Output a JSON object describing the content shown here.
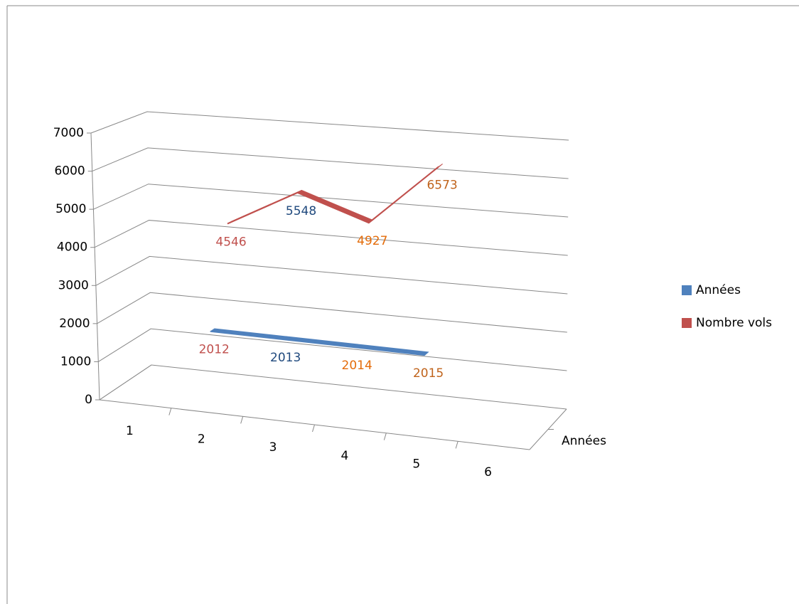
{
  "chart_data": {
    "type": "line3d",
    "categories": [
      "1",
      "2",
      "3",
      "4",
      "5",
      "6"
    ],
    "series": [
      {
        "name": "Années",
        "color": "#4f81bd",
        "depth": 0.12,
        "values": [
          null,
          2012,
          2013,
          2014,
          2015,
          null
        ]
      },
      {
        "name": "Nombre vols",
        "color": "#c0504d",
        "depth": 0.5,
        "values": [
          null,
          4546,
          5548,
          4927,
          6573,
          null
        ]
      }
    ],
    "label_colors": [
      "#c0504d",
      "#1f497d",
      "#e46c0a",
      "#c0631b"
    ],
    "depth_ticks": [
      "Années"
    ],
    "ylim": [
      0,
      7000
    ],
    "yticks": [
      0,
      1000,
      2000,
      3000,
      4000,
      5000,
      6000,
      7000
    ],
    "grid": true,
    "legend": "right"
  }
}
